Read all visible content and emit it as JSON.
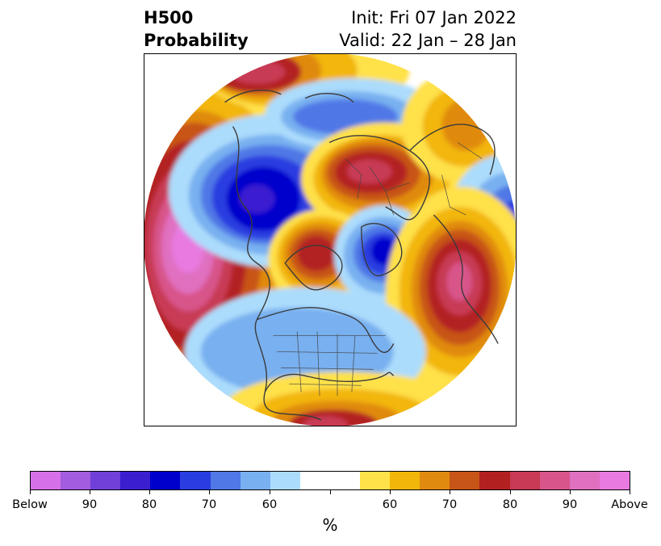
{
  "title": {
    "left_line1": "H500",
    "left_line2": "Probability",
    "right_line1": "Init: Fri 07 Jan 2022",
    "right_line2": "Valid: 22 Jan – 28 Jan"
  },
  "colorbar": {
    "units": "%",
    "below_colors": [
      "#d670e8",
      "#a35be0",
      "#7040d8",
      "#3a1ed0",
      "#0000cc",
      "#2a3de0",
      "#5078e6",
      "#78b0f0",
      "#acdcfc"
    ],
    "neutral_color": "#ffffff",
    "above_colors": [
      "#ffe14a",
      "#f2b60a",
      "#e08a10",
      "#c85518",
      "#b32020",
      "#c83a55",
      "#d8558a",
      "#e070c0",
      "#e87ae0"
    ],
    "tick_labels": [
      "Below",
      "90",
      "80",
      "70",
      "60",
      "60",
      "70",
      "80",
      "90",
      "Above"
    ]
  },
  "map": {
    "projection": "north-polar-stereographic",
    "anomaly_centers": [
      {
        "sign": "above",
        "region": "North Pacific",
        "level": "Above"
      },
      {
        "sign": "below",
        "region": "Siberia / Eastern Russia",
        "level": "80"
      },
      {
        "sign": "above",
        "region": "Northern Europe / Scandinavia",
        "level": "80"
      },
      {
        "sign": "above",
        "region": "Hudson Bay",
        "level": "80"
      },
      {
        "sign": "below",
        "region": "Greenland",
        "level": "80"
      },
      {
        "sign": "above",
        "region": "North Atlantic",
        "level": "90"
      },
      {
        "sign": "below",
        "region": "Central Asia",
        "level": "80"
      },
      {
        "sign": "above",
        "region": "Gulf of Mexico",
        "level": "80"
      },
      {
        "sign": "below",
        "region": "Contiguous United States",
        "level": "60"
      }
    ]
  }
}
